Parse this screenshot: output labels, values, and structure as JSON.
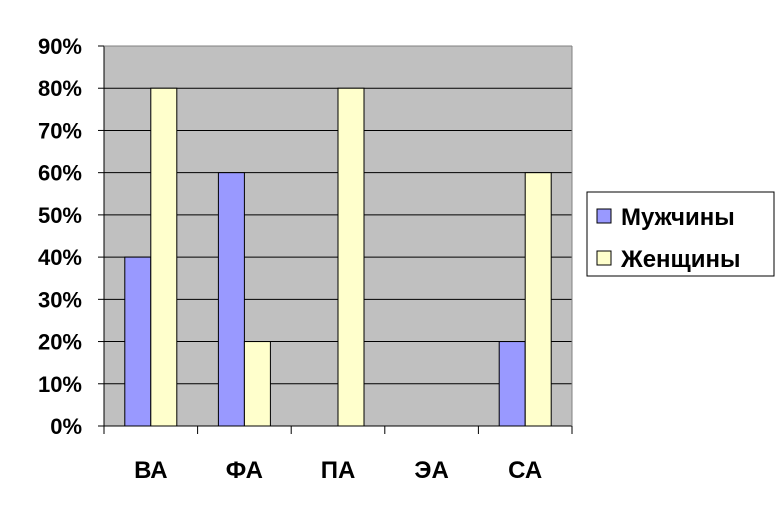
{
  "chart_data": {
    "type": "bar",
    "title": "",
    "xlabel": "",
    "ylabel": "",
    "categories": [
      "ВА",
      "ФА",
      "ПА",
      "ЭА",
      "СА"
    ],
    "series": [
      {
        "name": "Мужчины",
        "values": [
          40,
          60,
          0,
          0,
          20
        ],
        "color": "#9999ff"
      },
      {
        "name": "Женщины",
        "values": [
          80,
          20,
          80,
          0,
          60
        ],
        "color": "#ffffcc"
      }
    ],
    "ylim": [
      0,
      90
    ],
    "yticks": [
      0,
      10,
      20,
      30,
      40,
      50,
      60,
      70,
      80,
      90
    ],
    "ytick_labels": [
      "0%",
      "10%",
      "20%",
      "30%",
      "40%",
      "50%",
      "60%",
      "70%",
      "80%",
      "90%"
    ],
    "plot_background": "#c0c0c0",
    "grid": true,
    "legend_position": "right"
  }
}
